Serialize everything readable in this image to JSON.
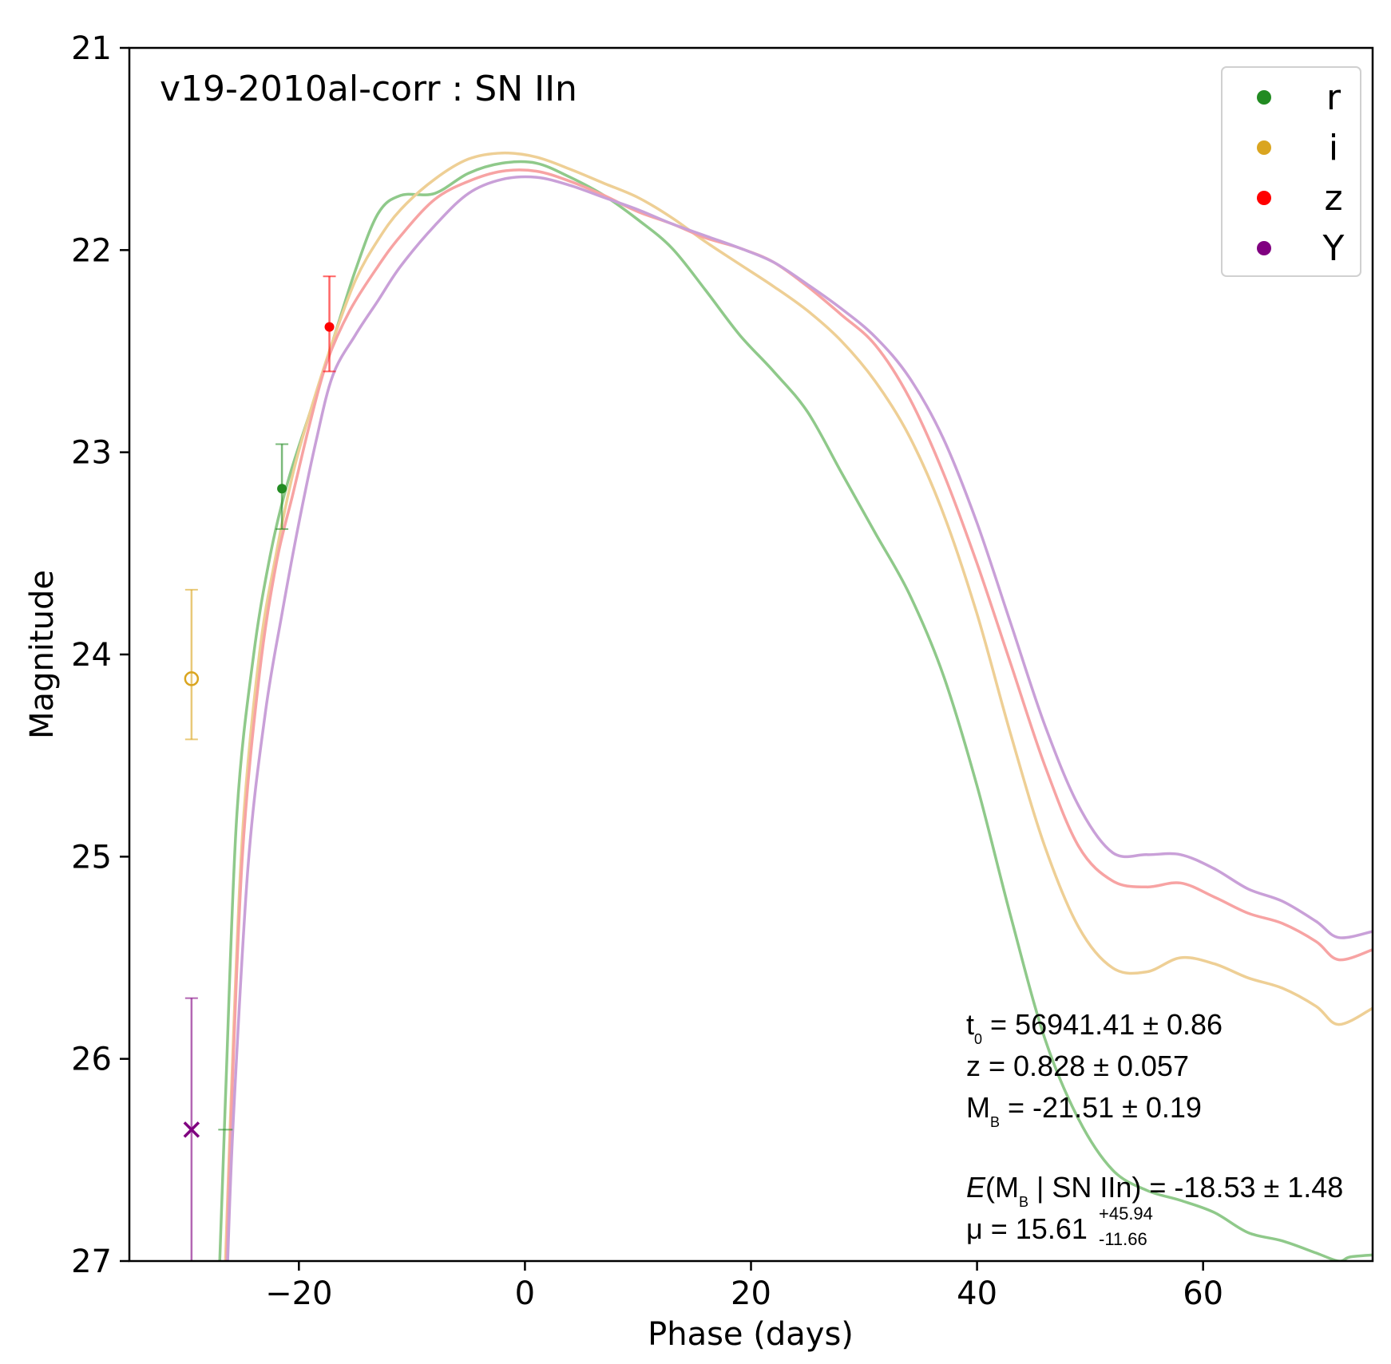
{
  "chart_data": {
    "type": "line",
    "title": "v19-2010al-corr : SN IIn",
    "xlabel": "Phase (days)",
    "ylabel": "Magnitude",
    "xlim": [
      -35,
      75
    ],
    "ylim": [
      27,
      21
    ],
    "y_inverted": true,
    "xticks": [
      -20,
      0,
      20,
      40,
      60
    ],
    "xtick_labels": [
      "−20",
      "0",
      "20",
      "40",
      "60"
    ],
    "yticks": [
      21,
      22,
      23,
      24,
      25,
      26,
      27
    ],
    "ytick_labels": [
      "21",
      "22",
      "23",
      "24",
      "25",
      "26",
      "27"
    ],
    "grid": false,
    "legend_position": "top-right",
    "series": [
      {
        "name": "r",
        "color": "#228B22",
        "line_color": "#8fc98a",
        "x": [
          -27.0,
          -26.5,
          -25.5,
          -24.0,
          -22.5,
          -21.0,
          -19.0,
          -17.0,
          -15.0,
          -13.0,
          -11.0,
          -8.0,
          -5.0,
          -2.0,
          1.0,
          4.0,
          7.0,
          10.0,
          13.0,
          16.0,
          19.0,
          22.0,
          25.0,
          28.0,
          31.0,
          34.0,
          37.0,
          40.0,
          43.0,
          46.0,
          49.0,
          52.0,
          55.0,
          58.0,
          61.0,
          64.0,
          67.0,
          70.0,
          72.0,
          73.0,
          75.0
        ],
        "y": [
          27.0,
          26.2,
          24.8,
          24.0,
          23.5,
          23.15,
          22.8,
          22.45,
          22.1,
          21.82,
          21.73,
          21.72,
          21.62,
          21.57,
          21.57,
          21.64,
          21.73,
          21.85,
          21.99,
          22.2,
          22.42,
          22.6,
          22.8,
          23.1,
          23.4,
          23.7,
          24.1,
          24.65,
          25.3,
          25.9,
          26.3,
          26.55,
          26.65,
          26.7,
          26.76,
          26.86,
          26.9,
          26.96,
          27.0,
          26.98,
          26.97
        ]
      },
      {
        "name": "i",
        "color": "#DAA520",
        "line_color": "#eecf95",
        "x": [
          -26.5,
          -26.0,
          -25.0,
          -23.5,
          -22.0,
          -20.5,
          -19.0,
          -17.0,
          -15.0,
          -13.0,
          -11.0,
          -8.0,
          -5.0,
          -2.0,
          1.0,
          4.0,
          7.0,
          10.0,
          13.0,
          16.0,
          19.0,
          22.0,
          25.0,
          28.0,
          31.0,
          34.0,
          37.0,
          40.0,
          43.0,
          46.0,
          49.0,
          52.0,
          55.0,
          58.0,
          61.0,
          64.0,
          67.0,
          70.0,
          72.0,
          75.0
        ],
        "y": [
          27.0,
          26.2,
          24.9,
          24.0,
          23.5,
          23.1,
          22.8,
          22.45,
          22.15,
          21.95,
          21.8,
          21.65,
          21.55,
          21.52,
          21.54,
          21.6,
          21.67,
          21.74,
          21.84,
          21.96,
          22.07,
          22.18,
          22.3,
          22.45,
          22.65,
          22.92,
          23.3,
          23.8,
          24.4,
          24.95,
          25.35,
          25.55,
          25.57,
          25.5,
          25.53,
          25.6,
          25.65,
          25.74,
          25.83,
          25.75
        ]
      },
      {
        "name": "z",
        "color": "#FF0000",
        "line_color": "#f7a3a3",
        "x": [
          -26.4,
          -26.0,
          -25.0,
          -23.5,
          -22.0,
          -20.5,
          -19.0,
          -17.5,
          -15.5,
          -13.0,
          -11.0,
          -8.0,
          -5.0,
          -2.0,
          1.0,
          4.0,
          7.0,
          10.0,
          13.0,
          16.0,
          19.0,
          22.0,
          25.0,
          28.0,
          31.0,
          34.0,
          37.0,
          40.0,
          43.0,
          46.0,
          49.0,
          52.0,
          55.0,
          58.0,
          61.0,
          64.0,
          67.0,
          70.0,
          72.0,
          75.0
        ],
        "y": [
          27.0,
          26.3,
          25.0,
          24.1,
          23.55,
          23.2,
          22.85,
          22.55,
          22.3,
          22.08,
          21.93,
          21.75,
          21.66,
          21.61,
          21.61,
          21.66,
          21.73,
          21.81,
          21.87,
          21.94,
          21.99,
          22.06,
          22.18,
          22.32,
          22.47,
          22.73,
          23.1,
          23.55,
          24.05,
          24.55,
          24.95,
          25.12,
          25.15,
          25.13,
          25.2,
          25.28,
          25.33,
          25.42,
          25.51,
          25.46
        ]
      },
      {
        "name": "Y",
        "color": "#800080",
        "line_color": "#c9a0d8",
        "x": [
          -26.3,
          -25.8,
          -24.5,
          -23.0,
          -21.5,
          -20.0,
          -18.5,
          -17.0,
          -15.0,
          -13.0,
          -11.0,
          -8.0,
          -5.0,
          -2.0,
          1.0,
          4.0,
          7.0,
          10.0,
          13.0,
          16.0,
          19.0,
          22.0,
          25.0,
          28.0,
          31.0,
          34.0,
          37.0,
          40.0,
          43.0,
          46.0,
          49.0,
          52.0,
          55.0,
          58.0,
          61.0,
          64.0,
          67.0,
          70.0,
          72.0,
          75.0
        ],
        "y": [
          27.0,
          26.3,
          25.05,
          24.3,
          23.8,
          23.35,
          22.95,
          22.62,
          22.42,
          22.25,
          22.08,
          21.88,
          21.72,
          21.65,
          21.64,
          21.68,
          21.74,
          21.8,
          21.87,
          21.93,
          21.99,
          22.06,
          22.17,
          22.29,
          22.43,
          22.63,
          22.93,
          23.35,
          23.85,
          24.35,
          24.75,
          24.98,
          24.99,
          24.99,
          25.06,
          25.16,
          25.22,
          25.32,
          25.4,
          25.37
        ]
      }
    ],
    "points": [
      {
        "band": "r",
        "x": -21.5,
        "y": 23.18,
        "err_low": 0.2,
        "err_high": 0.22,
        "marker": "filled-dot",
        "color": "#228B22"
      },
      {
        "band": "z",
        "x": -17.3,
        "y": 22.38,
        "err_low": 0.22,
        "err_high": 0.25,
        "marker": "filled-dot",
        "color": "#FF0000"
      },
      {
        "band": "i",
        "x": -29.5,
        "y": 24.12,
        "err_low": 0.3,
        "err_high": 0.44,
        "marker": "open-circle",
        "color": "#DAA520"
      },
      {
        "band": "Y",
        "x": -29.5,
        "y": 26.35,
        "err_low": 1.48,
        "err_high": 0.65,
        "marker": "cross",
        "color": "#800080"
      },
      {
        "band": "r",
        "x": -26.5,
        "y": 26.35,
        "err_low": 0.0,
        "err_high": 0.0,
        "marker": "tick",
        "color": "#228B22"
      }
    ],
    "annotations": {
      "t0_label": "t",
      "t0_sub": "0",
      "t0_value": " = 56941.41 ± 0.86",
      "z_line": "z = 0.828 ± 0.057",
      "mb_label": "M",
      "mb_sub": "B",
      "mb_value": " = -21.51 ± 0.19",
      "e_label": "E",
      "e_open": "(M",
      "e_sub": "B",
      "e_rest": " | SN IIn) =  -18.53 ± 1.48",
      "mu_value": "μ = 15.61",
      "mu_sup": "+45.94",
      "mu_sub": "-11.66"
    }
  }
}
